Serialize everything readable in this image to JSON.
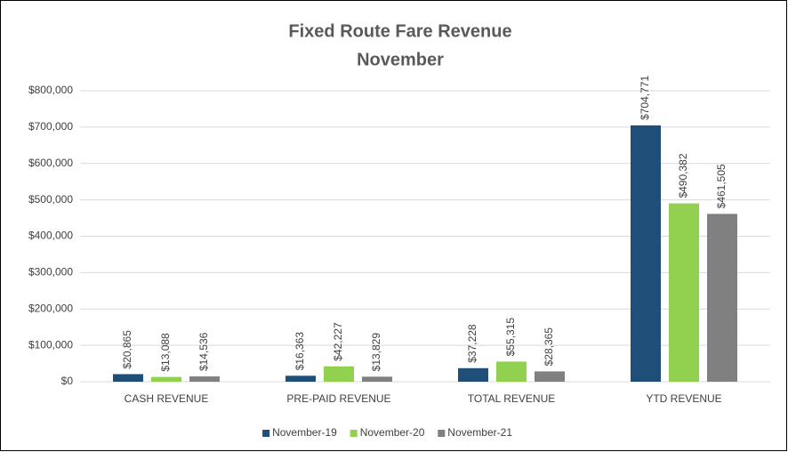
{
  "chart_data": {
    "type": "bar",
    "title": "Fixed Route Fare Revenue",
    "subtitle": "November",
    "categories": [
      "CASH REVENUE",
      "PRE-PAID REVENUE",
      "TOTAL REVENUE",
      "YTD REVENUE"
    ],
    "series": [
      {
        "name": "November-19",
        "color": "#1f4e79",
        "values": [
          20865,
          16363,
          37228,
          704771
        ],
        "value_labels": [
          "$20,865",
          "$16,363",
          "$37,228",
          "$704,771"
        ]
      },
      {
        "name": "November-20",
        "color": "#92d050",
        "values": [
          13088,
          42227,
          55315,
          490382
        ],
        "value_labels": [
          "$13,088",
          "$42,227",
          "$55,315",
          "$490,382"
        ]
      },
      {
        "name": "November-21",
        "color": "#808080",
        "values": [
          14536,
          13829,
          28365,
          461505
        ],
        "value_labels": [
          "$14,536",
          "$13,829",
          "$28,365",
          "$461,505"
        ]
      }
    ],
    "ylim": [
      0,
      800000
    ],
    "yticks": [
      {
        "value": 0,
        "label": "$0"
      },
      {
        "value": 100000,
        "label": "$100,000"
      },
      {
        "value": 200000,
        "label": "$200,000"
      },
      {
        "value": 300000,
        "label": "$300,000"
      },
      {
        "value": 400000,
        "label": "$400,000"
      },
      {
        "value": 500000,
        "label": "$500,000"
      },
      {
        "value": 600000,
        "label": "$600,000"
      },
      {
        "value": 700000,
        "label": "$700,000"
      },
      {
        "value": 800000,
        "label": "$800,000"
      }
    ],
    "grid": true,
    "legend": "bottom"
  }
}
